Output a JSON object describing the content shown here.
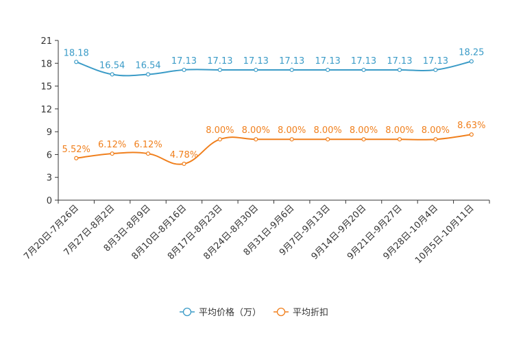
{
  "chart_data": {
    "type": "line",
    "categories": [
      "7月20日-7月26日",
      "7月27日-8月2日",
      "8月3日-8月9日",
      "8月10日-8月16日",
      "8月17日-8月23日",
      "8月24日-8月30日",
      "8月31日-9月6日",
      "9月7日-9月13日",
      "9月14日-9月20日",
      "9月21日-9月27日",
      "9月28日-10月4日",
      "10月5日-10月11日"
    ],
    "ylim": [
      0,
      21
    ],
    "yticks": [
      0,
      3,
      6,
      9,
      12,
      15,
      18,
      21
    ],
    "series": [
      {
        "name": "平均价格（万）",
        "color": "#3a9bc7",
        "values": [
          18.18,
          16.54,
          16.54,
          17.13,
          17.13,
          17.13,
          17.13,
          17.13,
          17.13,
          17.13,
          17.13,
          18.25
        ],
        "labels": [
          "18.18",
          "16.54",
          "16.54",
          "17.13",
          "17.13",
          "17.13",
          "17.13",
          "17.13",
          "17.13",
          "17.13",
          "17.13",
          "18.25"
        ]
      },
      {
        "name": "平均折扣",
        "color": "#f07f1c",
        "values": [
          5.52,
          6.12,
          6.12,
          4.78,
          8.0,
          8.0,
          8.0,
          8.0,
          8.0,
          8.0,
          8.0,
          8.63
        ],
        "labels": [
          "5.52%",
          "6.12%",
          "6.12%",
          "4.78%",
          "8.00%",
          "8.00%",
          "8.00%",
          "8.00%",
          "8.00%",
          "8.00%",
          "8.00%",
          "8.63%"
        ]
      }
    ],
    "legend_position": "bottom-center",
    "grid": false
  }
}
